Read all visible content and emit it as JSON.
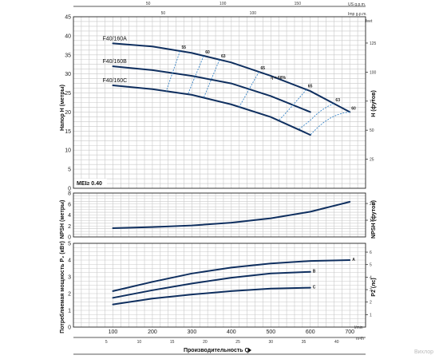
{
  "chart_data": [
    {
      "type": "line",
      "panel": "head",
      "ylabel": "Напор H (метры)",
      "ylabel_right": "H (футов)",
      "ylim": [
        0,
        45
      ],
      "yticks": [
        "0",
        "5",
        "10",
        "15",
        "20",
        "25",
        "30",
        "35",
        "40",
        "45"
      ],
      "yticks_right": [
        "25",
        "50",
        "75",
        "100",
        "125"
      ],
      "yticks_right_vals": [
        25,
        50,
        75,
        100,
        125
      ],
      "grid": true,
      "top_scale_usgpm": [
        "50",
        "100",
        "150"
      ],
      "top_scale_usgpm_vals": [
        50,
        100,
        150
      ],
      "top_scale_impgpm": [
        "50",
        "100"
      ],
      "top_scale_impgpm_vals": [
        50,
        100
      ],
      "unit_usgpm": "US g.p.m.",
      "unit_impgpm": "Imp g.p.m.",
      "unit_feet": "feet",
      "series": [
        {
          "name": "F40/160A",
          "x": [
            100,
            200,
            300,
            400,
            500,
            600,
            700
          ],
          "y": [
            38,
            37.2,
            35.5,
            33,
            29.5,
            25.5,
            20
          ]
        },
        {
          "name": "F40/160B",
          "x": [
            100,
            200,
            300,
            400,
            500,
            600
          ],
          "y": [
            32,
            31,
            29.5,
            27.5,
            24.2,
            20
          ]
        },
        {
          "name": "F40/160C",
          "x": [
            100,
            200,
            300,
            400,
            500,
            600
          ],
          "y": [
            27,
            26,
            24.5,
            22,
            18.7,
            14
          ]
        }
      ],
      "efficiency_labels": [
        "55",
        "60",
        "63",
        "65",
        "η = 68%",
        "65",
        "63",
        "60"
      ],
      "mei_label": "MEI≥ 0.40"
    },
    {
      "type": "line",
      "panel": "npsh",
      "ylabel": "NPSH (метры)",
      "ylabel_right": "NPSH (футов)",
      "ylim": [
        0,
        8
      ],
      "yticks": [
        "0",
        "2",
        "4",
        "6",
        "8"
      ],
      "yticks_right": [
        "10",
        "20"
      ],
      "yticks_right_vals": [
        10,
        20
      ],
      "grid": true,
      "series": [
        {
          "name": "",
          "x": [
            100,
            200,
            300,
            400,
            500,
            600,
            700
          ],
          "y": [
            1.6,
            1.8,
            2.1,
            2.6,
            3.4,
            4.6,
            6.4
          ]
        }
      ]
    },
    {
      "type": "line",
      "panel": "power",
      "ylabel": "Потребляемая мощность P₂ (кВт)",
      "ylabel_right": "P2 (лс)",
      "ylim": [
        0,
        5
      ],
      "yticks": [
        "0",
        "1",
        "2",
        "3",
        "4",
        "5"
      ],
      "yticks_right": [
        "1",
        "2",
        "3",
        "4",
        "5",
        "6"
      ],
      "yticks_right_vals": [
        1,
        2,
        3,
        4,
        5,
        6
      ],
      "xlim": [
        0,
        740
      ],
      "xticks": [
        "100",
        "200",
        "300",
        "400",
        "500",
        "600",
        "700"
      ],
      "xlabel_unit": "l/min",
      "bottom_scale_m3h": [
        "5",
        "10",
        "15",
        "20",
        "25",
        "30",
        "35",
        "40"
      ],
      "bottom_scale_m3h_vals": [
        5,
        10,
        15,
        20,
        25,
        30,
        35,
        40
      ],
      "unit_m3h": "m³/h",
      "grid": true,
      "series": [
        {
          "name": "A",
          "x": [
            100,
            200,
            300,
            400,
            500,
            600,
            700
          ],
          "y": [
            2.15,
            2.7,
            3.2,
            3.55,
            3.8,
            3.95,
            4.0
          ]
        },
        {
          "name": "B",
          "x": [
            100,
            200,
            300,
            400,
            500,
            600
          ],
          "y": [
            1.75,
            2.2,
            2.6,
            2.95,
            3.2,
            3.3
          ]
        },
        {
          "name": "C",
          "x": [
            100,
            200,
            300,
            400,
            500,
            600
          ],
          "y": [
            1.35,
            1.7,
            1.95,
            2.15,
            2.3,
            2.35
          ]
        }
      ]
    }
  ],
  "xlabel": "Производительность Q",
  "watermark": "Вихлор"
}
